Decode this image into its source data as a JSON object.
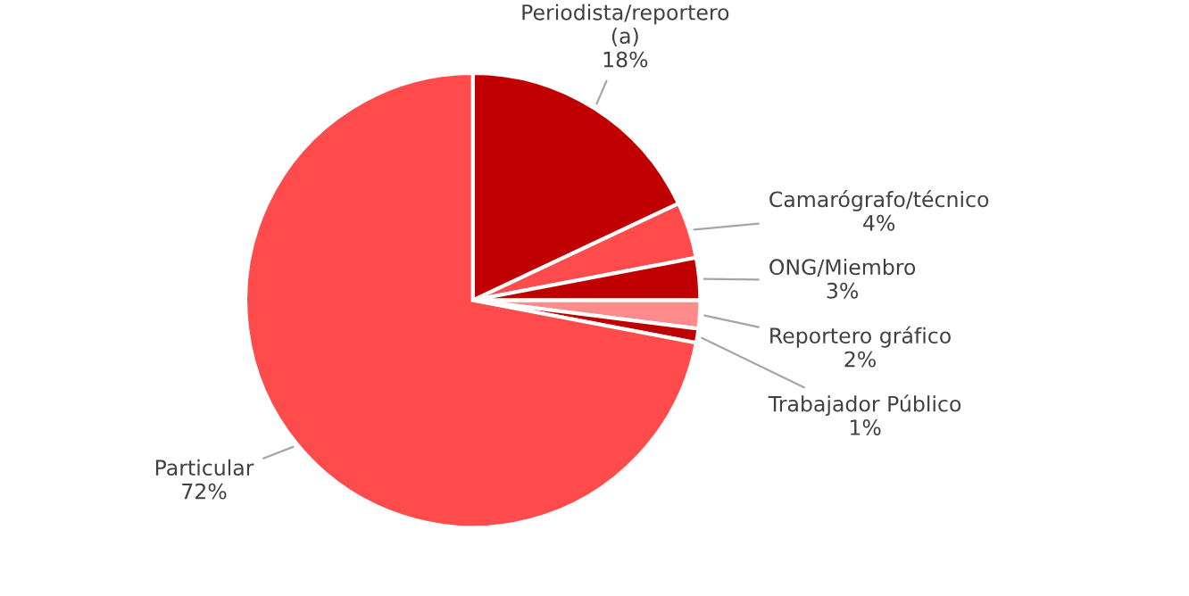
{
  "chart_data": {
    "type": "pie",
    "categories": [
      "Periodista/reportero\n(a)",
      "Camarógrafo/técnico",
      "ONG/Miembro",
      "Reportero gráfico",
      "Trabajador Público",
      "Particular"
    ],
    "values": [
      18,
      4,
      3,
      2,
      1,
      72
    ],
    "colors": [
      "#c00000",
      "#ff4b4b",
      "#c00000",
      "#ff8a8a",
      "#c00000",
      "#ff4b4b"
    ],
    "value_labels": [
      "18%",
      "4%",
      "3%",
      "2%",
      "1%",
      "72%"
    ]
  }
}
